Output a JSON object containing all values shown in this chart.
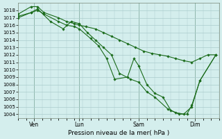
{
  "background_color": "#d4eeed",
  "grid_color": "#aacccc",
  "line_color": "#1a6b1a",
  "marker_color": "#1a6b1a",
  "xlabel": "Pression niveau de la mer( hPa )",
  "ylim": [
    1003.5,
    1019.0
  ],
  "yticks": [
    1004,
    1005,
    1006,
    1007,
    1008,
    1009,
    1010,
    1011,
    1012,
    1013,
    1014,
    1015,
    1016,
    1017,
    1018
  ],
  "xlim": [
    0,
    12.5
  ],
  "xtick_positions": [
    1.0,
    3.8,
    7.5,
    11.0
  ],
  "xtick_labels": [
    "Ven",
    "Lun",
    "Sam",
    "Dim"
  ],
  "line1_x": [
    0.0,
    0.8,
    1.2,
    1.6,
    2.5,
    3.0,
    3.5,
    3.8,
    4.2,
    4.8,
    5.3,
    5.8,
    6.3,
    6.8,
    7.3,
    7.8,
    8.3,
    8.8,
    9.3,
    9.8,
    10.3,
    10.8,
    11.3,
    11.8,
    12.3
  ],
  "line1_y": [
    1017.5,
    1018.5,
    1018.5,
    1017.7,
    1017.0,
    1016.5,
    1016.2,
    1016.0,
    1015.8,
    1015.5,
    1015.0,
    1014.5,
    1014.0,
    1013.5,
    1013.0,
    1012.5,
    1012.2,
    1012.0,
    1011.8,
    1011.5,
    1011.2,
    1011.0,
    1011.5,
    1012.0,
    1012.0
  ],
  "line2_x": [
    0.0,
    0.8,
    1.2,
    1.6,
    2.5,
    3.0,
    3.5,
    3.8,
    4.5,
    5.0,
    5.5,
    6.0,
    6.8,
    7.2,
    7.5,
    8.0,
    8.5,
    9.0,
    9.5,
    10.0,
    10.5,
    10.8,
    11.3,
    12.3
  ],
  "line2_y": [
    1017.0,
    1017.7,
    1018.0,
    1017.5,
    1016.5,
    1016.0,
    1015.8,
    1015.5,
    1014.2,
    1013.2,
    1011.5,
    1008.7,
    1009.0,
    1011.5,
    1010.5,
    1008.0,
    1006.8,
    1006.3,
    1004.5,
    1004.0,
    1004.0,
    1005.2,
    1008.5,
    1012.0
  ],
  "line3_x": [
    0.0,
    0.8,
    1.2,
    2.0,
    2.8,
    3.3,
    3.8,
    4.3,
    4.8,
    5.3,
    5.8,
    6.3,
    7.0,
    7.5,
    8.0,
    8.5,
    9.3,
    9.8,
    10.3,
    10.8,
    11.3,
    12.3
  ],
  "line3_y": [
    1017.2,
    1017.7,
    1018.2,
    1016.5,
    1015.5,
    1016.5,
    1016.2,
    1015.0,
    1014.0,
    1013.0,
    1012.0,
    1009.5,
    1008.7,
    1008.3,
    1007.0,
    1006.3,
    1004.7,
    1004.2,
    1004.0,
    1005.0,
    1008.5,
    1012.0
  ]
}
